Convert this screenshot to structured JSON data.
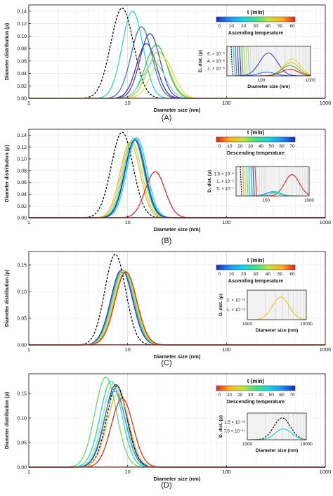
{
  "figure": {
    "panel_labels": [
      "(A)",
      "(B)",
      "(C)",
      "(D)"
    ]
  },
  "chart_data": [
    {
      "type": "line",
      "panel": "(A)",
      "xlabel": "Diameter size (nm)",
      "ylabel": "Diameter distribution (ρ)",
      "xscale": "log",
      "xlim": [
        1,
        1000
      ],
      "ylim": [
        0,
        0.15
      ],
      "xticks": [
        "1",
        "10",
        "100",
        "1000"
      ],
      "yticks": [
        "0.00",
        "0.02",
        "0.04",
        "0.06",
        "0.08",
        "0.10",
        "0.12",
        "0.14"
      ],
      "grid": true,
      "colorbar": {
        "title": "t (min)",
        "caption": "Ascending temperature",
        "ticks": [
          "0",
          "10",
          "20",
          "30",
          "40",
          "50",
          "60"
        ],
        "direction": "blue-to-red",
        "colors": [
          "#1a2cb8",
          "#1e90ff",
          "#19d3e0",
          "#3fe08a",
          "#c9e23a",
          "#ffb020",
          "#e0241c"
        ]
      },
      "series": [
        {
          "style": "dashed",
          "color": "#000000",
          "peak_x": 8.8,
          "peak_y": 0.145,
          "sigma": 0.115
        },
        {
          "color": "#27d7d2",
          "peak_x": 11.2,
          "peak_y": 0.14,
          "sigma": 0.105
        },
        {
          "color": "#2f73d8",
          "peak_x": 13.8,
          "peak_y": 0.115,
          "sigma": 0.105
        },
        {
          "color": "#4d3cc2",
          "peak_x": 16.8,
          "peak_y": 0.104,
          "sigma": 0.1
        },
        {
          "color": "#2a2a9c",
          "peak_x": 15.5,
          "peak_y": 0.088,
          "sigma": 0.1
        },
        {
          "color": "#35c24d",
          "peak_x": 19.5,
          "peak_y": 0.086,
          "sigma": 0.11
        },
        {
          "color": "#a2d63c",
          "peak_x": 20.5,
          "peak_y": 0.075,
          "sigma": 0.11
        },
        {
          "color": "#d8e04a",
          "peak_x": 22.5,
          "peak_y": 0.066,
          "sigma": 0.11
        },
        {
          "color": "#7fd8c8",
          "peak_x": 18.5,
          "peak_y": 0.058,
          "sigma": 0.11
        }
      ],
      "inset": {
        "xlabel": "Diameter size (nm)",
        "ylabel": "D. dist.",
        "xlim": [
          20,
          1000
        ],
        "xticks": [
          "100",
          "1000"
        ],
        "yticks": [
          "2. × 10⁻⁶",
          "4. × 10⁻⁶",
          "6. × 10⁻⁶"
        ],
        "ymax": 8e-06,
        "series": [
          {
            "color": "#4d3cc2",
            "peak_x": 140,
            "peak_y": 6.2e-06,
            "sigma": 0.18
          },
          {
            "color": "#d8e04a",
            "peak_x": 420,
            "peak_y": 4.6e-06,
            "sigma": 0.17
          },
          {
            "color": "#ffb020",
            "peak_x": 400,
            "peak_y": 3.6e-06,
            "sigma": 0.17
          },
          {
            "color": "#35c24d",
            "peak_x": 380,
            "peak_y": 2.8e-06,
            "sigma": 0.17
          },
          {
            "color": "#e0241c",
            "peak_x": 380,
            "peak_y": 1.8e-06,
            "sigma": 0.17
          },
          {
            "color": "#2f73d8",
            "peak_x": 130,
            "peak_y": 1e-06,
            "sigma": 0.17
          }
        ]
      }
    },
    {
      "type": "line",
      "panel": "(B)",
      "xlabel": "Diameter size (nm)",
      "ylabel": "Diameter distribution (ρ)",
      "xscale": "log",
      "xlim": [
        1,
        1000
      ],
      "ylim": [
        0,
        0.15
      ],
      "xticks": [
        "1",
        "10",
        "100",
        "1000"
      ],
      "yticks": [
        "0.00",
        "0.02",
        "0.04",
        "0.06",
        "0.08",
        "0.10",
        "0.12",
        "0.14"
      ],
      "grid": true,
      "colorbar": {
        "title": "t (min)",
        "caption": "Descending temperature",
        "ticks": [
          "0",
          "10",
          "20",
          "30",
          "40",
          "50",
          "60",
          "70"
        ],
        "direction": "red-to-blue",
        "colors": [
          "#e0241c",
          "#ffb020",
          "#c9e23a",
          "#3fe08a",
          "#19d3e0",
          "#1e90ff",
          "#1a2cb8"
        ]
      },
      "series": [
        {
          "style": "dashed",
          "color": "#000000",
          "peak_x": 8.8,
          "peak_y": 0.145,
          "sigma": 0.11
        },
        {
          "color": "#ffb020",
          "peak_x": 10.6,
          "peak_y": 0.128,
          "sigma": 0.1
        },
        {
          "color": "#b5e04a",
          "peak_x": 11.0,
          "peak_y": 0.13,
          "sigma": 0.1
        },
        {
          "color": "#3fe08a",
          "peak_x": 11.5,
          "peak_y": 0.135,
          "sigma": 0.1
        },
        {
          "color": "#19d3e0",
          "peak_x": 12.4,
          "peak_y": 0.136,
          "sigma": 0.1
        },
        {
          "color": "#1e90ff",
          "peak_x": 12.0,
          "peak_y": 0.134,
          "sigma": 0.1
        },
        {
          "color": "#1a2cb8",
          "peak_x": 11.8,
          "peak_y": 0.132,
          "sigma": 0.1
        },
        {
          "color": "#e0241c",
          "peak_x": 19.0,
          "peak_y": 0.078,
          "sigma": 0.1
        }
      ],
      "inset": {
        "xlabel": "",
        "ylabel": "D. dist.",
        "xlim": [
          20,
          1000
        ],
        "xticks": [
          "100",
          "1000"
        ],
        "yticks": [
          "5. × 10⁻⁷",
          "1. × 10⁻⁶",
          "1.5 × 10⁻⁶"
        ],
        "ymax": 2e-06,
        "series": [
          {
            "color": "#e0241c",
            "peak_x": 400,
            "peak_y": 1.45e-06,
            "sigma": 0.17
          },
          {
            "color": "#19d3e0",
            "peak_x": 150,
            "peak_y": 3.2e-07,
            "sigma": 0.16
          },
          {
            "color": "#1e90ff",
            "peak_x": 140,
            "peak_y": 2.6e-07,
            "sigma": 0.16
          },
          {
            "color": "#3fe08a",
            "peak_x": 165,
            "peak_y": 2e-07,
            "sigma": 0.16
          }
        ]
      }
    },
    {
      "type": "line",
      "panel": "(C)",
      "xlabel": "Diameter size (nm)",
      "ylabel": "Diameter distribution (ρ)",
      "xscale": "log",
      "xlim": [
        1,
        1000
      ],
      "ylim": [
        0,
        0.175
      ],
      "xticks": [
        "1",
        "10",
        "100",
        "1000"
      ],
      "yticks": [
        "0.00",
        "0.05",
        "0.10",
        "0.15"
      ],
      "grid": true,
      "colorbar": {
        "title": "t (min)",
        "caption": "Ascending temperature",
        "ticks": [
          "0",
          "10",
          "20",
          "30",
          "40",
          "50",
          "60"
        ],
        "direction": "blue-to-red",
        "colors": [
          "#1a2cb8",
          "#1e90ff",
          "#19d3e0",
          "#3fe08a",
          "#c9e23a",
          "#ffb020",
          "#e0241c"
        ]
      },
      "series": [
        {
          "style": "dashed",
          "color": "#000000",
          "peak_x": 7.5,
          "peak_y": 0.17,
          "sigma": 0.105
        },
        {
          "color": "#1a2cb8",
          "peak_x": 8.7,
          "peak_y": 0.141,
          "sigma": 0.11
        },
        {
          "color": "#1e90ff",
          "peak_x": 8.9,
          "peak_y": 0.14,
          "sigma": 0.11
        },
        {
          "color": "#3fe08a",
          "peak_x": 9.0,
          "peak_y": 0.14,
          "sigma": 0.11
        },
        {
          "color": "#c9e23a",
          "peak_x": 9.2,
          "peak_y": 0.14,
          "sigma": 0.11
        },
        {
          "color": "#ffb020",
          "peak_x": 9.4,
          "peak_y": 0.138,
          "sigma": 0.11
        },
        {
          "color": "#e0241c",
          "peak_x": 9.6,
          "peak_y": 0.137,
          "sigma": 0.11
        }
      ],
      "inset": {
        "xlabel": "Diameter size (nm)",
        "ylabel": "D. dist.",
        "xlim": [
          1000,
          10000
        ],
        "xticks": [
          "1000",
          "10000"
        ],
        "yticks": [
          "1. × 10⁻¹³",
          "2. × 10⁻¹³"
        ],
        "ymax": 3e-13,
        "series": [
          {
            "color": "#f2bd1d",
            "peak_x": 3700,
            "peak_y": 2.3e-13,
            "sigma": 0.14
          }
        ]
      }
    },
    {
      "type": "line",
      "panel": "(D)",
      "xlabel": "Diameter size (nm)",
      "ylabel": "Diameter distribution (ρ)",
      "xscale": "log",
      "xlim": [
        1,
        1000
      ],
      "ylim": [
        0,
        0.19
      ],
      "xticks": [
        "1",
        "10",
        "100",
        "1000"
      ],
      "yticks": [
        "0.00",
        "0.05",
        "0.10",
        "0.15"
      ],
      "grid": true,
      "colorbar": {
        "title": "t (min)",
        "caption": "Descending temperature",
        "ticks": [
          "0",
          "10",
          "20",
          "30",
          "40",
          "50",
          "60",
          "70"
        ],
        "direction": "red-to-blue",
        "colors": [
          "#e0241c",
          "#ffb020",
          "#c9e23a",
          "#3fe08a",
          "#19d3e0",
          "#1e90ff",
          "#1a2cb8"
        ]
      },
      "series": [
        {
          "color": "#5fe05a",
          "peak_x": 6.0,
          "peak_y": 0.183,
          "sigma": 0.11
        },
        {
          "color": "#19d3e0",
          "peak_x": 6.8,
          "peak_y": 0.175,
          "sigma": 0.11
        },
        {
          "color": "#a6e05a",
          "peak_x": 7.2,
          "peak_y": 0.17,
          "sigma": 0.11
        },
        {
          "color": "#1a2cb8",
          "peak_x": 7.6,
          "peak_y": 0.168,
          "sigma": 0.11
        },
        {
          "style": "dashed",
          "color": "#000000",
          "peak_x": 7.8,
          "peak_y": 0.165,
          "sigma": 0.105
        },
        {
          "color": "#1e90ff",
          "peak_x": 7.4,
          "peak_y": 0.155,
          "sigma": 0.11
        },
        {
          "color": "#ffb020",
          "peak_x": 8.0,
          "peak_y": 0.15,
          "sigma": 0.11
        },
        {
          "color": "#e0241c",
          "peak_x": 8.8,
          "peak_y": 0.14,
          "sigma": 0.11
        }
      ],
      "inset": {
        "xlabel": "Diameter size (nm)",
        "ylabel": "D. dist.",
        "xlim": [
          1000,
          10000
        ],
        "xticks": [
          "1000",
          "10000"
        ],
        "yticks": [
          "7.5 × 10⁻¹⁴",
          "1.5 × 10⁻¹³"
        ],
        "ymax": 2.2e-13,
        "series": [
          {
            "style": "dashed",
            "color": "#000000",
            "peak_x": 3900,
            "peak_y": 1.8e-13,
            "sigma": 0.14
          },
          {
            "color": "#19d3e0",
            "peak_x": 4100,
            "peak_y": 9e-14,
            "sigma": 0.14
          }
        ]
      }
    }
  ]
}
